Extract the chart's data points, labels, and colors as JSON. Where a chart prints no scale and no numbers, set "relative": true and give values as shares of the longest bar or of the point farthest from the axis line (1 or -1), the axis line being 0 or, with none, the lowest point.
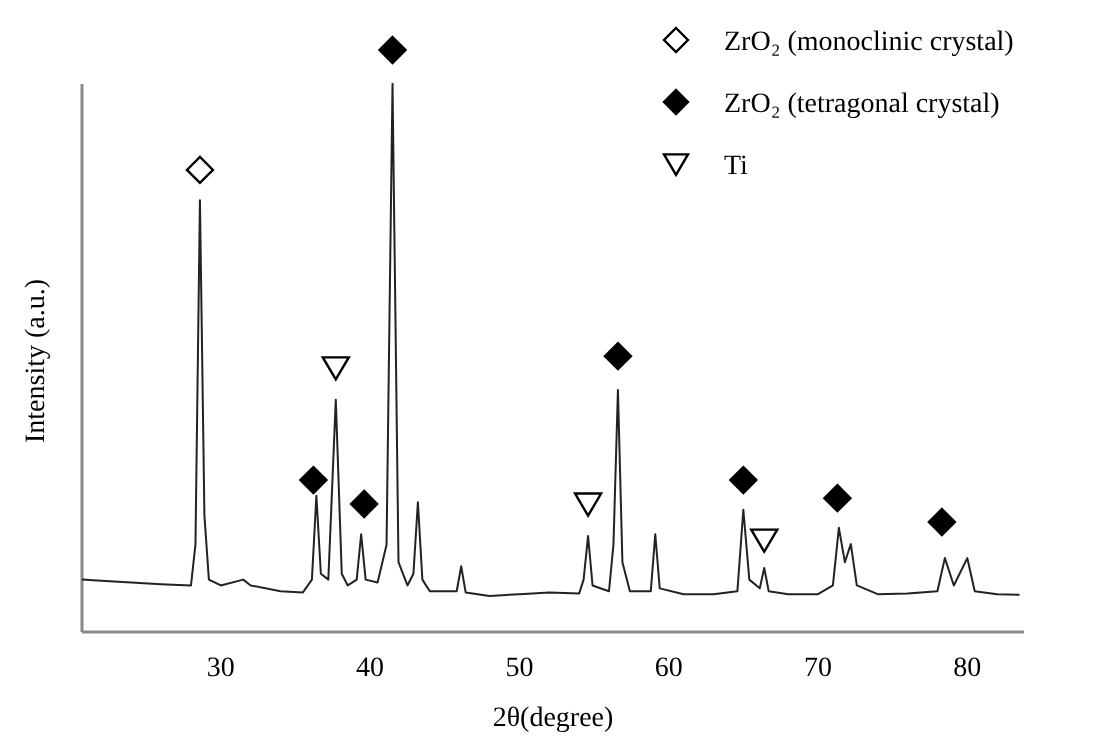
{
  "chart_data": {
    "type": "line",
    "xlabel": "2θ(degree)",
    "ylabel": "Intensity (a.u.)",
    "relative": true,
    "xlim": [
      20.7,
      83.8
    ],
    "xticks": [
      30,
      40,
      50,
      60,
      70,
      80
    ],
    "tick_labels": "x",
    "legend": "top right",
    "grid": false,
    "series": [
      {
        "color": "#222222",
        "marker": "none",
        "line_style": "solid",
        "x": [
          20.7,
          22,
          24,
          26,
          28,
          28.3,
          28.6,
          28.9,
          29.2,
          30,
          31.5,
          32,
          34,
          35.5,
          36.1,
          36.4,
          36.7,
          37.2,
          37.7,
          38.1,
          38.5,
          39.1,
          39.4,
          39.7,
          40.5,
          41.1,
          41.5,
          41.9,
          42.5,
          42.9,
          43.2,
          43.5,
          44,
          45.8,
          46.1,
          46.4,
          48,
          50,
          52,
          54,
          54.3,
          54.6,
          54.9,
          56,
          56.3,
          56.6,
          56.9,
          57.4,
          58.8,
          59.1,
          59.4,
          61,
          63,
          64.6,
          65.0,
          65.4,
          66.1,
          66.4,
          66.7,
          68,
          70,
          71,
          71.4,
          71.8,
          72.2,
          72.6,
          74,
          76,
          78,
          78.5,
          79.1,
          80,
          80.5,
          82,
          83.5
        ],
        "values": [
          0.09,
          0.088,
          0.085,
          0.082,
          0.08,
          0.15,
          0.742,
          0.2,
          0.09,
          0.08,
          0.09,
          0.08,
          0.07,
          0.068,
          0.09,
          0.234,
          0.1,
          0.09,
          0.399,
          0.1,
          0.08,
          0.09,
          0.168,
          0.09,
          0.085,
          0.15,
          0.942,
          0.12,
          0.08,
          0.1,
          0.223,
          0.09,
          0.07,
          0.07,
          0.113,
          0.068,
          0.062,
          0.065,
          0.068,
          0.066,
          0.09,
          0.165,
          0.08,
          0.07,
          0.15,
          0.416,
          0.12,
          0.07,
          0.07,
          0.168,
          0.075,
          0.065,
          0.065,
          0.07,
          0.21,
          0.09,
          0.075,
          0.11,
          0.07,
          0.065,
          0.065,
          0.08,
          0.179,
          0.12,
          0.151,
          0.08,
          0.065,
          0.066,
          0.07,
          0.127,
          0.08,
          0.127,
          0.07,
          0.065,
          0.064
        ]
      },
      {
        "type": "scatter",
        "name": "ZrO₂ (monoclinic crystal)",
        "color": "#ffffff",
        "marker": "diamond",
        "x": [
          28.6
        ],
        "values": [
          0.794
        ]
      },
      {
        "type": "scatter",
        "name": "ZrO₂ (tetragonal crystal)",
        "color": "#000000",
        "marker": "diamond",
        "x": [
          36.2,
          39.6,
          41.5,
          56.6,
          65.0,
          71.3,
          78.3
        ],
        "values": [
          0.261,
          0.22,
          1.0,
          0.474,
          0.261,
          0.23,
          0.189
        ]
      },
      {
        "type": "scatter",
        "name": "Ti",
        "color": "#ffffff",
        "marker": "triangle",
        "x": [
          37.7,
          54.6,
          66.4
        ],
        "values": [
          0.454,
          0.22,
          0.158
        ]
      }
    ]
  }
}
